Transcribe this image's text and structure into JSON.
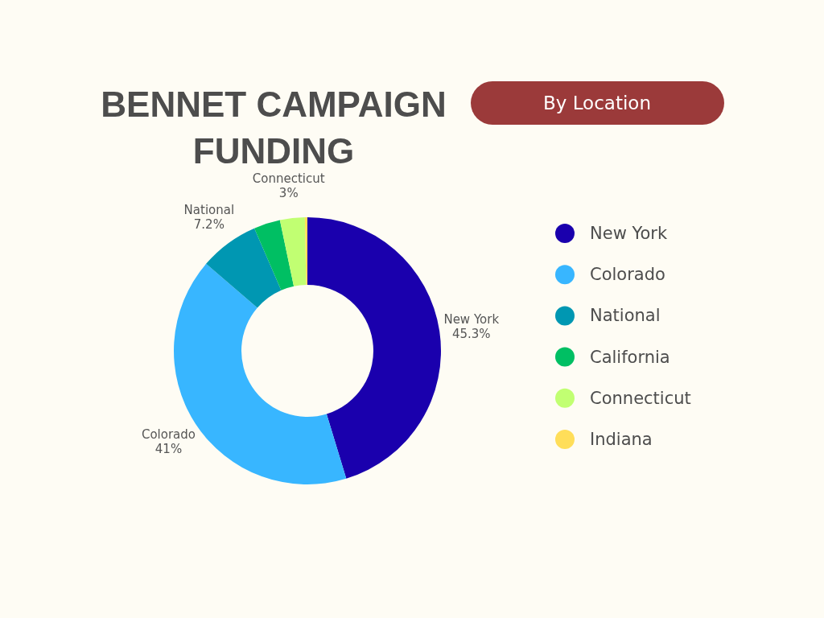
{
  "chart_data": {
    "type": "donut",
    "title": "BENNET CAMPAIGN FUNDING",
    "subtitle": "By Location",
    "categories": [
      "New York",
      "Colorado",
      "National",
      "California",
      "Connecticut",
      "Indiana"
    ],
    "values": [
      45.3,
      41,
      7.2,
      3.2,
      3,
      0.3
    ],
    "colors": [
      "#1a00ad",
      "#38b6ff",
      "#0097b2",
      "#00bf63",
      "#c1ff72",
      "#ffde59"
    ],
    "value_labels": [
      "45.3%",
      "41%",
      "7.2%",
      null,
      "3%",
      null
    ],
    "legend": "right"
  }
}
